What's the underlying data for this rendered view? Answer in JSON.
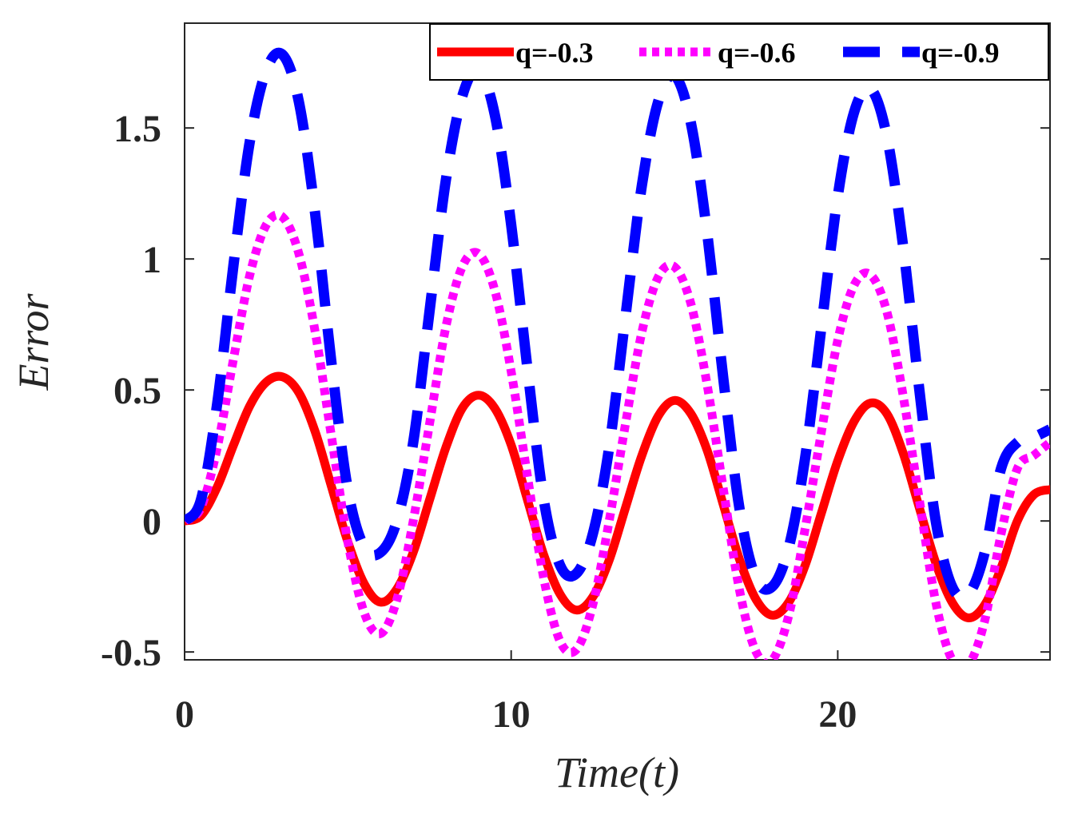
{
  "chart_data": {
    "type": "line",
    "xlabel": "Time(t)",
    "ylabel": "Error",
    "xlim": [
      0,
      26.5
    ],
    "ylim": [
      -0.53,
      1.9
    ],
    "x_ticks": [
      0,
      10,
      20
    ],
    "x_tick_labels": [
      "0",
      "10",
      "20"
    ],
    "y_ticks": [
      -0.5,
      0,
      0.5,
      1,
      1.5
    ],
    "y_tick_labels": [
      "-0.5",
      "0",
      "0.5",
      "1",
      "1.5"
    ],
    "legend_position": "top-right",
    "series": [
      {
        "name": "q=-0.3",
        "color": "#ff0000",
        "style": "solid",
        "x": [
          0,
          0.5,
          1,
          1.5,
          2,
          2.5,
          3,
          3.5,
          4,
          4.5,
          5,
          5.5,
          6,
          6.5,
          7,
          7.5,
          8,
          8.5,
          9,
          9.5,
          10,
          10.5,
          11,
          11.5,
          12,
          12.5,
          13,
          13.5,
          14,
          14.5,
          15,
          15.5,
          16,
          16.5,
          17,
          17.5,
          18,
          18.5,
          19,
          19.5,
          20,
          20.5,
          21,
          21.5,
          22,
          22.5,
          23,
          23.5,
          24,
          24.5,
          25,
          25.5,
          26,
          26.5
        ],
        "y": [
          0.0,
          0.02,
          0.13,
          0.29,
          0.44,
          0.53,
          0.55,
          0.49,
          0.34,
          0.13,
          -0.08,
          -0.24,
          -0.31,
          -0.26,
          -0.12,
          0.08,
          0.28,
          0.43,
          0.48,
          0.43,
          0.29,
          0.08,
          -0.13,
          -0.28,
          -0.34,
          -0.29,
          -0.15,
          0.05,
          0.25,
          0.4,
          0.46,
          0.41,
          0.27,
          0.06,
          -0.15,
          -0.3,
          -0.36,
          -0.31,
          -0.17,
          0.03,
          0.23,
          0.38,
          0.45,
          0.41,
          0.26,
          0.05,
          -0.16,
          -0.31,
          -0.37,
          -0.32,
          -0.18,
          0.0,
          0.1,
          0.12
        ]
      },
      {
        "name": "q=-0.6",
        "color": "#ff00ff",
        "style": "dotted",
        "x": [
          0,
          0.5,
          1,
          1.5,
          2,
          2.5,
          3,
          3.5,
          4,
          4.5,
          5,
          5.5,
          6,
          6.5,
          7,
          7.5,
          8,
          8.5,
          9,
          9.5,
          10,
          10.5,
          11,
          11.5,
          12,
          12.5,
          13,
          13.5,
          14,
          14.5,
          15,
          15.5,
          16,
          16.5,
          17,
          17.5,
          18,
          18.5,
          19,
          19.5,
          20,
          20.5,
          21,
          21.5,
          22,
          22.5,
          23,
          23.5,
          24,
          24.5,
          25,
          25.5,
          26,
          26.5
        ],
        "y": [
          0.0,
          0.05,
          0.28,
          0.62,
          0.94,
          1.13,
          1.16,
          1.02,
          0.72,
          0.32,
          -0.08,
          -0.35,
          -0.43,
          -0.3,
          0.0,
          0.37,
          0.74,
          0.97,
          1.02,
          0.88,
          0.57,
          0.17,
          -0.22,
          -0.46,
          -0.49,
          -0.32,
          0.0,
          0.37,
          0.72,
          0.93,
          0.97,
          0.83,
          0.52,
          0.12,
          -0.27,
          -0.5,
          -0.53,
          -0.36,
          -0.03,
          0.34,
          0.69,
          0.9,
          0.94,
          0.8,
          0.48,
          0.08,
          -0.31,
          -0.53,
          -0.55,
          -0.38,
          -0.05,
          0.2,
          0.25,
          0.3
        ]
      },
      {
        "name": "q=-0.9",
        "color": "#0000ff",
        "style": "dashed",
        "x": [
          0,
          0.5,
          1,
          1.5,
          2,
          2.5,
          3,
          3.5,
          4,
          4.5,
          5,
          5.5,
          6,
          6.5,
          7,
          7.5,
          8,
          8.5,
          9,
          9.5,
          10,
          10.5,
          11,
          11.5,
          12,
          12.5,
          13,
          13.5,
          14,
          14.5,
          15,
          15.5,
          16,
          16.5,
          17,
          17.5,
          18,
          18.5,
          19,
          19.5,
          20,
          20.5,
          21,
          21.5,
          22,
          22.5,
          23,
          23.5,
          24,
          24.5,
          25,
          25.5,
          26,
          26.5
        ],
        "y": [
          0.0,
          0.08,
          0.45,
          0.98,
          1.45,
          1.72,
          1.78,
          1.6,
          1.17,
          0.6,
          0.12,
          -0.1,
          -0.12,
          0.0,
          0.3,
          0.8,
          1.3,
          1.62,
          1.72,
          1.55,
          1.13,
          0.58,
          0.08,
          -0.17,
          -0.2,
          -0.05,
          0.28,
          0.78,
          1.28,
          1.6,
          1.7,
          1.52,
          1.1,
          0.54,
          0.04,
          -0.22,
          -0.25,
          -0.1,
          0.24,
          0.74,
          1.24,
          1.56,
          1.65,
          1.47,
          1.05,
          0.5,
          0.0,
          -0.25,
          -0.28,
          -0.12,
          0.2,
          0.3,
          0.32,
          0.35
        ]
      }
    ]
  }
}
